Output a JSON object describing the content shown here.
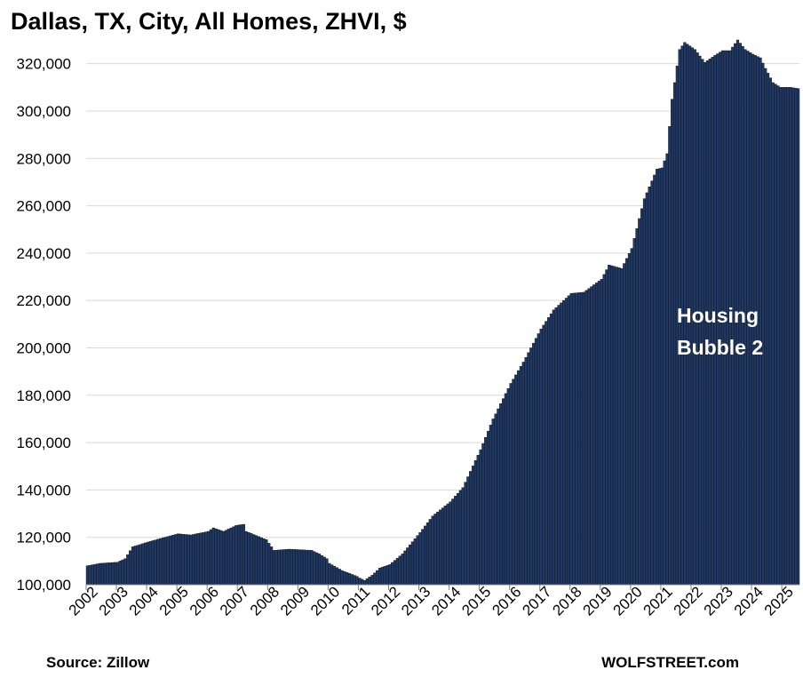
{
  "chart_data": {
    "type": "bar",
    "title": "Dallas, TX, City, All Homes, ZHVI, $",
    "xlabel": "",
    "ylabel": "",
    "ylim": [
      100000,
      330000
    ],
    "yticks": [
      100000,
      120000,
      140000,
      160000,
      180000,
      200000,
      220000,
      240000,
      260000,
      280000,
      300000,
      320000
    ],
    "ytick_labels": [
      "100,000",
      "120,000",
      "140,000",
      "160,000",
      "180,000",
      "200,000",
      "220,000",
      "240,000",
      "260,000",
      "280,000",
      "300,000",
      "320,000"
    ],
    "grid": true,
    "x_start": "2002-01",
    "frequency": "monthly",
    "year_labels": [
      "2002",
      "2003",
      "2004",
      "2005",
      "2006",
      "2007",
      "2008",
      "2009",
      "2010",
      "2011",
      "2012",
      "2013",
      "2014",
      "2015",
      "2016",
      "2017",
      "2018",
      "2019",
      "2020",
      "2021",
      "2022",
      "2023",
      "2024",
      "2025"
    ],
    "bar_color": "#1f3864",
    "annotation": {
      "line1": "Housing",
      "line2": "Bubble 2"
    },
    "anchors": [
      [
        "2002-01",
        108000
      ],
      [
        "2002-06",
        109000
      ],
      [
        "2003-01",
        109500
      ],
      [
        "2003-04",
        111000
      ],
      [
        "2003-07",
        116000
      ],
      [
        "2004-01",
        118000
      ],
      [
        "2004-06",
        119500
      ],
      [
        "2005-01",
        121500
      ],
      [
        "2005-06",
        121000
      ],
      [
        "2006-01",
        122500
      ],
      [
        "2006-03",
        124000
      ],
      [
        "2006-07",
        122500
      ],
      [
        "2006-12",
        125000
      ],
      [
        "2007-03",
        125500
      ],
      [
        "2007-04",
        122500
      ],
      [
        "2007-12",
        119000
      ],
      [
        "2008-03",
        114500
      ],
      [
        "2008-09",
        115000
      ],
      [
        "2009-06",
        114500
      ],
      [
        "2009-09",
        113000
      ],
      [
        "2009-12",
        111000
      ],
      [
        "2010-01",
        109000
      ],
      [
        "2010-06",
        106000
      ],
      [
        "2010-12",
        103500
      ],
      [
        "2011-01",
        102800
      ],
      [
        "2011-03",
        101800
      ],
      [
        "2011-06",
        104000
      ],
      [
        "2011-09",
        107000
      ],
      [
        "2012-01",
        108500
      ],
      [
        "2012-06",
        113000
      ],
      [
        "2013-01",
        122000
      ],
      [
        "2013-06",
        129000
      ],
      [
        "2014-01",
        135000
      ],
      [
        "2014-06",
        141000
      ],
      [
        "2015-01",
        157000
      ],
      [
        "2015-06",
        170000
      ],
      [
        "2016-01",
        185000
      ],
      [
        "2016-06",
        194000
      ],
      [
        "2017-01",
        208000
      ],
      [
        "2017-06",
        216000
      ],
      [
        "2018-01",
        223000
      ],
      [
        "2018-06",
        223500
      ],
      [
        "2019-01",
        229000
      ],
      [
        "2019-04",
        235000
      ],
      [
        "2019-09",
        233500
      ],
      [
        "2020-01",
        242000
      ],
      [
        "2020-06",
        263000
      ],
      [
        "2020-11",
        275500
      ],
      [
        "2021-01",
        276000
      ],
      [
        "2021-03",
        282000
      ],
      [
        "2021-05",
        305000
      ],
      [
        "2021-08",
        326000
      ],
      [
        "2021-10",
        329000
      ],
      [
        "2022-02",
        326000
      ],
      [
        "2022-06",
        320500
      ],
      [
        "2022-10",
        323500
      ],
      [
        "2023-01",
        325500
      ],
      [
        "2023-04",
        325500
      ],
      [
        "2023-07",
        330000
      ],
      [
        "2023-10",
        326000
      ],
      [
        "2024-01",
        324000
      ],
      [
        "2024-04",
        322500
      ],
      [
        "2024-06",
        318000
      ],
      [
        "2024-09",
        312000
      ],
      [
        "2024-12",
        310000
      ],
      [
        "2025-04",
        310000
      ],
      [
        "2025-07",
        309500
      ]
    ]
  },
  "footer": {
    "source": "Source: Zillow",
    "brand": "WOLFSTREET.com"
  }
}
